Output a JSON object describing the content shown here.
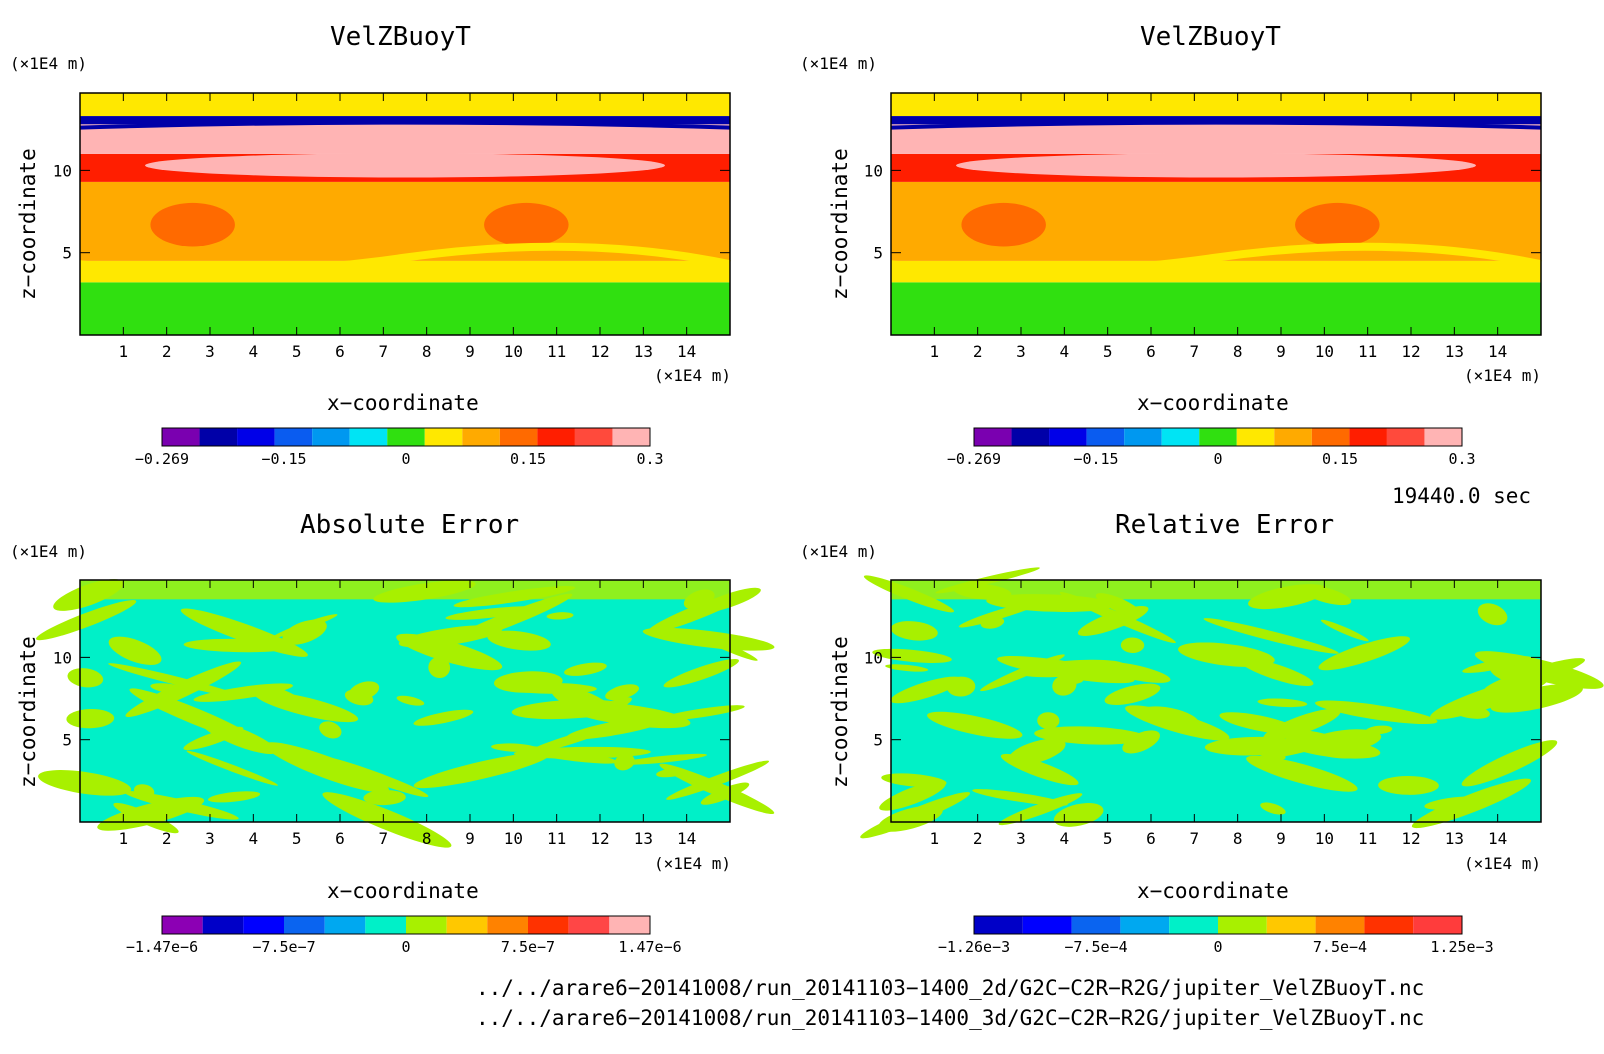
{
  "panels": [
    {
      "title": "VelZBuoyT",
      "xlabel": "x−coordinate",
      "ylabel": "z−coordinate",
      "x_unit": "(×1E4 m)",
      "y_unit": "(×1E4 m)",
      "x_ticks": [
        "1",
        "2",
        "3",
        "4",
        "5",
        "6",
        "7",
        "8",
        "9",
        "10",
        "11",
        "12",
        "13",
        "14"
      ],
      "y_ticks": [
        "5",
        "10"
      ],
      "colorbar": {
        "labels": [
          "−0.269",
          "−0.15",
          "0",
          "0.15",
          "0.3"
        ],
        "colors": [
          "#7a00b0",
          "#0000a8",
          "#0000e8",
          "#0a5cf0",
          "#0098f0",
          "#00e4f4",
          "#30e010",
          "#ffe800",
          "#ffaa00",
          "#ff6a00",
          "#ff1e00",
          "#ff4a3c",
          "#ffb4b4"
        ]
      }
    },
    {
      "title": "VelZBuoyT",
      "xlabel": "x−coordinate",
      "ylabel": "z−coordinate",
      "x_unit": "(×1E4 m)",
      "y_unit": "(×1E4 m)",
      "x_ticks": [
        "1",
        "2",
        "3",
        "4",
        "5",
        "6",
        "7",
        "8",
        "9",
        "10",
        "11",
        "12",
        "13",
        "14"
      ],
      "y_ticks": [
        "5",
        "10"
      ],
      "colorbar": {
        "labels": [
          "−0.269",
          "−0.15",
          "0",
          "0.15",
          "0.3"
        ],
        "colors": [
          "#7a00b0",
          "#0000a8",
          "#0000e8",
          "#0a5cf0",
          "#0098f0",
          "#00e4f4",
          "#30e010",
          "#ffe800",
          "#ffaa00",
          "#ff6a00",
          "#ff1e00",
          "#ff4a3c",
          "#ffb4b4"
        ]
      }
    },
    {
      "title": "Absolute Error",
      "xlabel": "x−coordinate",
      "ylabel": "z−coordinate",
      "x_unit": "(×1E4 m)",
      "y_unit": "(×1E4 m)",
      "x_ticks": [
        "1",
        "2",
        "3",
        "4",
        "5",
        "6",
        "7",
        "8",
        "9",
        "10",
        "11",
        "12",
        "13",
        "14"
      ],
      "y_ticks": [
        "5",
        "10"
      ],
      "colorbar": {
        "labels": [
          "−1.47e−6",
          "−7.5e−7",
          "0",
          "7.5e−7",
          "1.47e−6"
        ],
        "colors": [
          "#8c00b4",
          "#0000c8",
          "#0000ff",
          "#0a64f0",
          "#00a8f0",
          "#00f0c8",
          "#a8f000",
          "#ffc800",
          "#ff8200",
          "#ff3200",
          "#ff4646",
          "#ffb4b4"
        ]
      }
    },
    {
      "title": "Relative Error",
      "xlabel": "x−coordinate",
      "ylabel": "z−coordinate",
      "x_unit": "(×1E4 m)",
      "y_unit": "(×1E4 m)",
      "x_ticks": [
        "1",
        "2",
        "3",
        "4",
        "5",
        "6",
        "7",
        "8",
        "9",
        "10",
        "11",
        "12",
        "13",
        "14"
      ],
      "y_ticks": [
        "5",
        "10"
      ],
      "colorbar": {
        "labels": [
          "−1.26e−3",
          "−7.5e−4",
          "0",
          "7.5e−4",
          "1.25e−3"
        ],
        "colors": [
          "#0000c8",
          "#0000ff",
          "#0a64f0",
          "#00a8f0",
          "#00f0c8",
          "#a8f000",
          "#ffc800",
          "#ff8200",
          "#ff3200",
          "#ff3c3c"
        ]
      }
    }
  ],
  "timestamp": "19440.0 sec",
  "files": [
    "../../arare6−20141008/run_20141103−1400_2d/G2C−C2R−R2G/jupiter_VelZBuoyT.nc",
    "../../arare6−20141008/run_20141103−1400_3d/G2C−C2R−R2G/jupiter_VelZBuoyT.nc"
  ],
  "chart_data": [
    {
      "type": "heatmap",
      "title": "VelZBuoyT",
      "xlabel": "x−coordinate",
      "ylabel": "z−coordinate",
      "xlim": [
        0,
        15
      ],
      "ylim": [
        0,
        14.7
      ],
      "color_range": [
        -0.269,
        0.3
      ],
      "field_bands": [
        {
          "z_from": 0.0,
          "z_to": 3.2,
          "value": 0.01
        },
        {
          "z_from": 3.2,
          "z_to": 4.5,
          "value": 0.05
        },
        {
          "z_from": 4.5,
          "z_to": 9.3,
          "value": 0.1
        },
        {
          "z_from": 9.3,
          "z_to": 11.0,
          "value": 0.18
        },
        {
          "z_from": 11.0,
          "z_to": 12.8,
          "value": 0.26
        },
        {
          "z_from": 12.8,
          "z_to": 13.3,
          "value": -0.2
        },
        {
          "z_from": 13.3,
          "z_to": 14.7,
          "value": 0.04
        }
      ]
    },
    {
      "type": "heatmap",
      "title": "VelZBuoyT",
      "xlabel": "x−coordinate",
      "ylabel": "z−coordinate",
      "xlim": [
        0,
        15
      ],
      "ylim": [
        0,
        14.7
      ],
      "color_range": [
        -0.269,
        0.3
      ],
      "field_bands": [
        {
          "z_from": 0.0,
          "z_to": 3.2,
          "value": 0.01
        },
        {
          "z_from": 3.2,
          "z_to": 4.5,
          "value": 0.05
        },
        {
          "z_from": 4.5,
          "z_to": 9.3,
          "value": 0.1
        },
        {
          "z_from": 9.3,
          "z_to": 11.0,
          "value": 0.18
        },
        {
          "z_from": 11.0,
          "z_to": 12.8,
          "value": 0.26
        },
        {
          "z_from": 12.8,
          "z_to": 13.3,
          "value": -0.2
        },
        {
          "z_from": 13.3,
          "z_to": 14.7,
          "value": 0.04
        }
      ]
    },
    {
      "type": "heatmap",
      "title": "Absolute Error",
      "xlabel": "x−coordinate",
      "ylabel": "z−coordinate",
      "xlim": [
        0,
        15
      ],
      "ylim": [
        0,
        14.7
      ],
      "color_range": [
        -1.47e-06,
        1.47e-06
      ]
    },
    {
      "type": "heatmap",
      "title": "Relative Error",
      "xlabel": "x−coordinate",
      "ylabel": "z−coordinate",
      "xlim": [
        0,
        15
      ],
      "ylim": [
        0,
        14.7
      ],
      "color_range": [
        -0.00126,
        0.00125
      ]
    }
  ]
}
